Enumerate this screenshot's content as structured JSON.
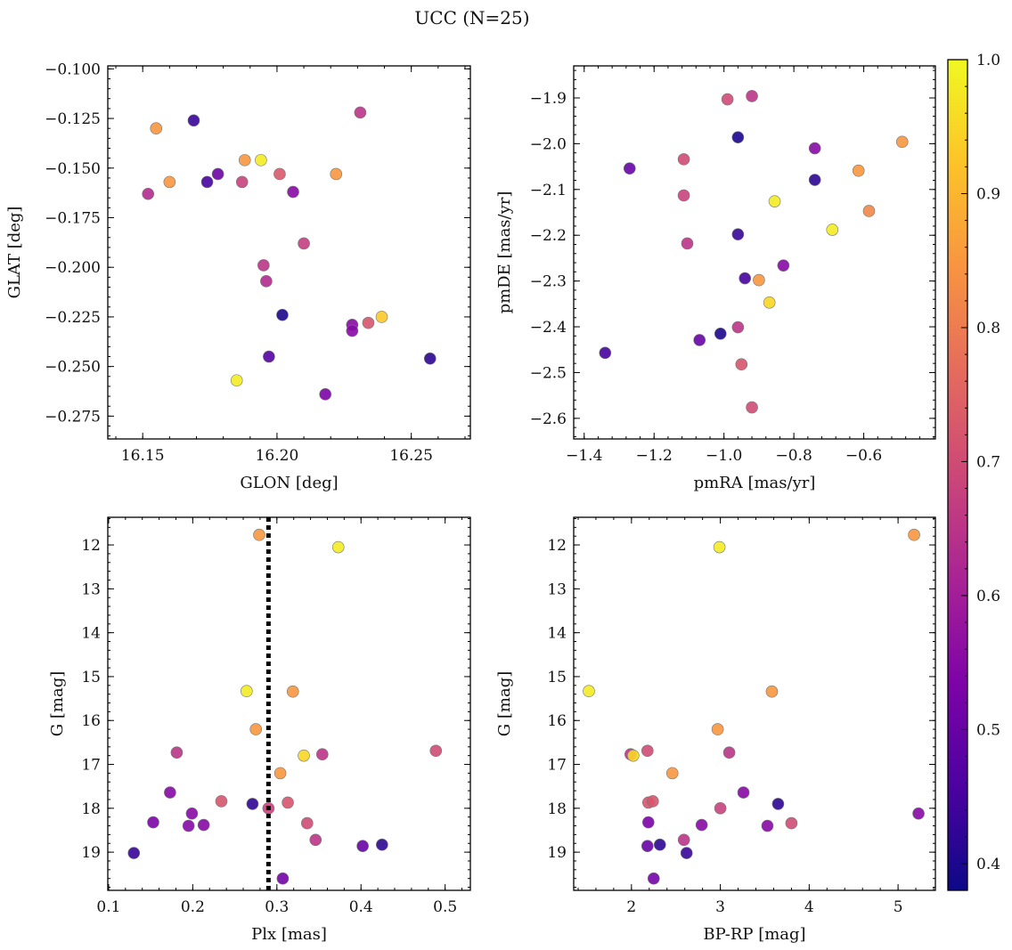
{
  "figure": {
    "title": "UCC (N=25)"
  },
  "colorbar": {
    "range": [
      0.38,
      1.0
    ],
    "ticks": [
      0.4,
      0.5,
      0.6,
      0.7,
      0.8,
      0.9,
      1.0
    ],
    "tick_labels": [
      "0.4",
      "0.5",
      "0.6",
      "0.7",
      "0.8",
      "0.9",
      "1.0"
    ],
    "colormap": "plasma"
  },
  "chart_data": [
    {
      "type": "scatter",
      "xlabel": "GLON [deg]",
      "ylabel": "GLAT [deg]",
      "xlim": [
        16.137,
        16.272
      ],
      "ylim": [
        -0.2865,
        -0.0985
      ],
      "x_ticks": [
        16.15,
        16.2,
        16.25
      ],
      "x_tick_labels": [
        "16.15",
        "16.20",
        "16.25"
      ],
      "y_ticks": [
        -0.1,
        -0.125,
        -0.15,
        -0.175,
        -0.2,
        -0.225,
        -0.25,
        -0.275
      ],
      "y_tick_labels": [
        "−0.100",
        "−0.125",
        "−0.150",
        "−0.175",
        "−0.200",
        "−0.225",
        "−0.250",
        "−0.275"
      ],
      "points": [
        {
          "x": 16.155,
          "y": -0.13,
          "c": 0.85
        },
        {
          "x": 16.169,
          "y": -0.126,
          "c": 0.43
        },
        {
          "x": 16.231,
          "y": -0.122,
          "c": 0.65
        },
        {
          "x": 16.188,
          "y": -0.146,
          "c": 0.85
        },
        {
          "x": 16.194,
          "y": -0.146,
          "c": 0.98
        },
        {
          "x": 16.201,
          "y": -0.153,
          "c": 0.73
        },
        {
          "x": 16.222,
          "y": -0.153,
          "c": 0.85
        },
        {
          "x": 16.16,
          "y": -0.157,
          "c": 0.85
        },
        {
          "x": 16.174,
          "y": -0.157,
          "c": 0.45
        },
        {
          "x": 16.178,
          "y": -0.153,
          "c": 0.51
        },
        {
          "x": 16.187,
          "y": -0.157,
          "c": 0.68
        },
        {
          "x": 16.152,
          "y": -0.163,
          "c": 0.63
        },
        {
          "x": 16.206,
          "y": -0.162,
          "c": 0.55
        },
        {
          "x": 16.21,
          "y": -0.188,
          "c": 0.67
        },
        {
          "x": 16.195,
          "y": -0.199,
          "c": 0.65
        },
        {
          "x": 16.196,
          "y": -0.207,
          "c": 0.63
        },
        {
          "x": 16.202,
          "y": -0.224,
          "c": 0.4
        },
        {
          "x": 16.228,
          "y": -0.229,
          "c": 0.55
        },
        {
          "x": 16.228,
          "y": -0.232,
          "c": 0.55
        },
        {
          "x": 16.234,
          "y": -0.228,
          "c": 0.72
        },
        {
          "x": 16.239,
          "y": -0.225,
          "c": 0.93
        },
        {
          "x": 16.197,
          "y": -0.245,
          "c": 0.47
        },
        {
          "x": 16.257,
          "y": -0.246,
          "c": 0.42
        },
        {
          "x": 16.185,
          "y": -0.257,
          "c": 0.98
        },
        {
          "x": 16.218,
          "y": -0.264,
          "c": 0.53
        }
      ]
    },
    {
      "type": "scatter",
      "xlabel": "pmRA [mas/yr]",
      "ylabel": "pmDE [mas/yr]",
      "xlim": [
        -1.43,
        -0.395
      ],
      "ylim": [
        -2.645,
        -1.83
      ],
      "x_ticks": [
        -1.4,
        -1.2,
        -1.0,
        -0.8,
        -0.6
      ],
      "x_tick_labels": [
        "−1.4",
        "−1.2",
        "−1.0",
        "−0.8",
        "−0.6"
      ],
      "y_ticks": [
        -1.9,
        -2.0,
        -2.1,
        -2.2,
        -2.3,
        -2.4,
        -2.5,
        -2.6
      ],
      "y_tick_labels": [
        "−1.9",
        "−2.0",
        "−2.1",
        "−2.2",
        "−2.3",
        "−2.4",
        "−2.5",
        "−2.6"
      ],
      "points": [
        {
          "x": -0.99,
          "y": -1.903,
          "c": 0.7
        },
        {
          "x": -0.92,
          "y": -1.896,
          "c": 0.65
        },
        {
          "x": -0.96,
          "y": -1.986,
          "c": 0.4
        },
        {
          "x": -0.74,
          "y": -2.01,
          "c": 0.55
        },
        {
          "x": -0.49,
          "y": -1.996,
          "c": 0.85
        },
        {
          "x": -1.27,
          "y": -2.054,
          "c": 0.5
        },
        {
          "x": -1.115,
          "y": -2.034,
          "c": 0.7
        },
        {
          "x": -0.74,
          "y": -2.079,
          "c": 0.42
        },
        {
          "x": -0.615,
          "y": -2.059,
          "c": 0.85
        },
        {
          "x": -1.115,
          "y": -2.113,
          "c": 0.68
        },
        {
          "x": -0.855,
          "y": -2.126,
          "c": 0.98
        },
        {
          "x": -0.585,
          "y": -2.147,
          "c": 0.82
        },
        {
          "x": -1.105,
          "y": -2.218,
          "c": 0.65
        },
        {
          "x": -0.96,
          "y": -2.198,
          "c": 0.43
        },
        {
          "x": -0.69,
          "y": -2.188,
          "c": 0.98
        },
        {
          "x": -0.83,
          "y": -2.266,
          "c": 0.55
        },
        {
          "x": -0.94,
          "y": -2.294,
          "c": 0.45
        },
        {
          "x": -0.9,
          "y": -2.298,
          "c": 0.85
        },
        {
          "x": -0.87,
          "y": -2.347,
          "c": 0.95
        },
        {
          "x": -0.96,
          "y": -2.401,
          "c": 0.65
        },
        {
          "x": -1.01,
          "y": -2.415,
          "c": 0.4
        },
        {
          "x": -1.07,
          "y": -2.429,
          "c": 0.5
        },
        {
          "x": -1.34,
          "y": -2.457,
          "c": 0.45
        },
        {
          "x": -0.95,
          "y": -2.482,
          "c": 0.72
        },
        {
          "x": -0.92,
          "y": -2.576,
          "c": 0.7
        }
      ]
    },
    {
      "type": "scatter",
      "xlabel": "Plx [mas]",
      "ylabel": "G [mag]",
      "xlim": [
        0.099,
        0.53
      ],
      "ylim": [
        19.87,
        11.37
      ],
      "y_inverted": true,
      "x_ticks": [
        0.1,
        0.2,
        0.3,
        0.4,
        0.5
      ],
      "x_tick_labels": [
        "0.1",
        "0.2",
        "0.3",
        "0.4",
        "0.5"
      ],
      "y_ticks": [
        12,
        13,
        14,
        15,
        16,
        17,
        18,
        19
      ],
      "y_tick_labels": [
        "12",
        "13",
        "14",
        "15",
        "16",
        "17",
        "18",
        "19"
      ],
      "vline": 0.29,
      "points": [
        {
          "x": 0.279,
          "y": 11.77,
          "c": 0.85
        },
        {
          "x": 0.373,
          "y": 12.05,
          "c": 0.98
        },
        {
          "x": 0.264,
          "y": 15.33,
          "c": 0.98
        },
        {
          "x": 0.319,
          "y": 15.34,
          "c": 0.85
        },
        {
          "x": 0.275,
          "y": 16.2,
          "c": 0.85
        },
        {
          "x": 0.181,
          "y": 16.73,
          "c": 0.65
        },
        {
          "x": 0.489,
          "y": 16.69,
          "c": 0.7
        },
        {
          "x": 0.354,
          "y": 16.77,
          "c": 0.65
        },
        {
          "x": 0.332,
          "y": 16.8,
          "c": 0.95
        },
        {
          "x": 0.304,
          "y": 17.2,
          "c": 0.85
        },
        {
          "x": 0.173,
          "y": 17.64,
          "c": 0.55
        },
        {
          "x": 0.234,
          "y": 17.84,
          "c": 0.72
        },
        {
          "x": 0.271,
          "y": 17.9,
          "c": 0.42
        },
        {
          "x": 0.29,
          "y": 18.0,
          "c": 0.68
        },
        {
          "x": 0.313,
          "y": 17.87,
          "c": 0.72
        },
        {
          "x": 0.199,
          "y": 18.12,
          "c": 0.55
        },
        {
          "x": 0.153,
          "y": 18.32,
          "c": 0.53
        },
        {
          "x": 0.195,
          "y": 18.4,
          "c": 0.55
        },
        {
          "x": 0.213,
          "y": 18.38,
          "c": 0.55
        },
        {
          "x": 0.336,
          "y": 18.34,
          "c": 0.7
        },
        {
          "x": 0.346,
          "y": 18.72,
          "c": 0.65
        },
        {
          "x": 0.402,
          "y": 18.86,
          "c": 0.5
        },
        {
          "x": 0.425,
          "y": 18.83,
          "c": 0.42
        },
        {
          "x": 0.13,
          "y": 19.02,
          "c": 0.43
        },
        {
          "x": 0.307,
          "y": 19.6,
          "c": 0.52
        }
      ]
    },
    {
      "type": "scatter",
      "xlabel": "BP-RP [mag]",
      "ylabel": "G [mag]",
      "xlim": [
        1.35,
        5.42
      ],
      "ylim": [
        19.87,
        11.37
      ],
      "y_inverted": true,
      "x_ticks": [
        2,
        3,
        4,
        5
      ],
      "x_tick_labels": [
        "2",
        "3",
        "4",
        "5"
      ],
      "y_ticks": [
        12,
        13,
        14,
        15,
        16,
        17,
        18,
        19
      ],
      "y_tick_labels": [
        "12",
        "13",
        "14",
        "15",
        "16",
        "17",
        "18",
        "19"
      ],
      "points": [
        {
          "x": 5.18,
          "y": 11.77,
          "c": 0.85
        },
        {
          "x": 2.99,
          "y": 12.05,
          "c": 0.98
        },
        {
          "x": 1.52,
          "y": 15.33,
          "c": 0.98
        },
        {
          "x": 3.58,
          "y": 15.34,
          "c": 0.85
        },
        {
          "x": 2.97,
          "y": 16.2,
          "c": 0.85
        },
        {
          "x": 2.18,
          "y": 16.69,
          "c": 0.7
        },
        {
          "x": 1.99,
          "y": 16.77,
          "c": 0.65
        },
        {
          "x": 2.02,
          "y": 16.8,
          "c": 0.95
        },
        {
          "x": 3.1,
          "y": 16.73,
          "c": 0.65
        },
        {
          "x": 2.46,
          "y": 17.2,
          "c": 0.85
        },
        {
          "x": 3.26,
          "y": 17.64,
          "c": 0.55
        },
        {
          "x": 2.19,
          "y": 17.87,
          "c": 0.72
        },
        {
          "x": 2.24,
          "y": 17.84,
          "c": 0.72
        },
        {
          "x": 3.65,
          "y": 17.9,
          "c": 0.42
        },
        {
          "x": 3.0,
          "y": 18.0,
          "c": 0.68
        },
        {
          "x": 5.23,
          "y": 18.12,
          "c": 0.55
        },
        {
          "x": 2.19,
          "y": 18.32,
          "c": 0.53
        },
        {
          "x": 2.79,
          "y": 18.38,
          "c": 0.55
        },
        {
          "x": 3.53,
          "y": 18.4,
          "c": 0.55
        },
        {
          "x": 3.8,
          "y": 18.34,
          "c": 0.7
        },
        {
          "x": 2.59,
          "y": 18.72,
          "c": 0.65
        },
        {
          "x": 2.18,
          "y": 18.86,
          "c": 0.5
        },
        {
          "x": 2.32,
          "y": 18.83,
          "c": 0.42
        },
        {
          "x": 2.62,
          "y": 19.02,
          "c": 0.43
        },
        {
          "x": 2.25,
          "y": 19.6,
          "c": 0.52
        }
      ]
    }
  ]
}
